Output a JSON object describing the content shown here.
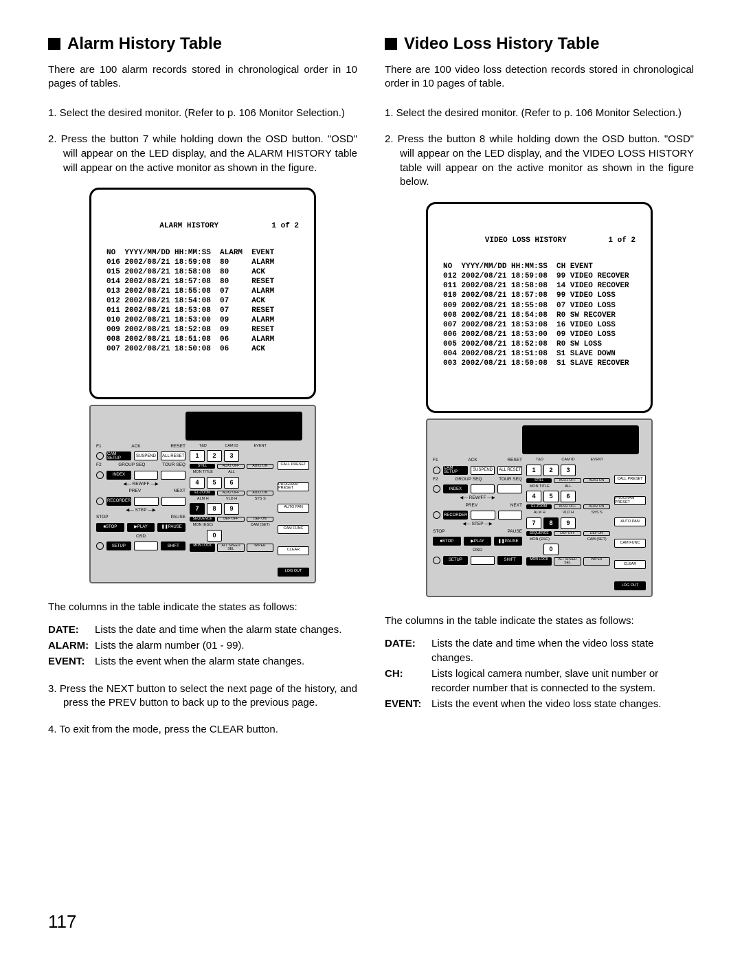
{
  "page_number": "117",
  "left": {
    "title": "Alarm History Table",
    "intro": "There are 100 alarm records stored in chronological order in 10 pages of tables.",
    "steps": [
      "1. Select the desired monitor. (Refer to p. 106 Monitor Selection.)",
      "2. Press the button 7 while holding down the OSD button. \"OSD\" will appear on the LED display, and the ALARM HISTORY table will appear on the active monitor as shown in the figure."
    ],
    "table": {
      "title": "ALARM HISTORY",
      "page": "1 of 2",
      "header": "NO  YYYY/MM/DD HH:MM:SS  ALARM  EVENT",
      "rows": [
        "016 2002/08/21 18:59:08  80     ALARM",
        "015 2002/08/21 18:58:08  80     ACK",
        "014 2002/08/21 18:57:08  80     RESET",
        "013 2002/08/21 18:55:08  07     ALARM",
        "012 2002/08/21 18:54:08  07     ACK",
        "011 2002/08/21 18:53:08  07     RESET",
        "010 2002/08/21 18:53:00  09     ALARM",
        "009 2002/08/21 18:52:08  09     RESET",
        "008 2002/08/21 18:51:08  06     ALARM",
        "007 2002/08/21 18:50:08  06     ACK"
      ]
    },
    "highlight_key": "7",
    "cols_text": "The columns in the table indicate the states as follows:",
    "defs": [
      {
        "term": "DATE:",
        "desc": "Lists the date and time when the alarm state changes."
      },
      {
        "term": "ALARM:",
        "desc": "Lists the alarm number (01 - 99)."
      },
      {
        "term": "EVENT:",
        "desc": "Lists the event when the alarm state changes."
      }
    ],
    "after_steps": [
      "3. Press the NEXT button to select the next page of the history, and press the PREV button to back up to the previous page.",
      "4. To exit from the mode, press the CLEAR button."
    ]
  },
  "right": {
    "title": "Video Loss History Table",
    "intro": "There are 100 video loss detection records stored in chronological order in 10 pages of table.",
    "steps": [
      "1. Select the desired monitor. (Refer to p. 106 Monitor Selection.)",
      "2. Press the button 8 while holding down the OSD button. \"OSD\" will appear on the LED display, and the VIDEO LOSS HISTORY table will appear on the active monitor as shown in the figure  below."
    ],
    "table": {
      "title": "VIDEO LOSS HISTORY",
      "page": "1 of 2",
      "header": "NO  YYYY/MM/DD HH:MM:SS  CH EVENT",
      "rows": [
        "012 2002/08/21 18:59:08  99 VIDEO RECOVER",
        "011 2002/08/21 18:58:08  14 VIDEO RECOVER",
        "010 2002/08/21 18:57:08  99 VIDEO LOSS",
        "009 2002/08/21 18:55:08  07 VIDEO LOSS",
        "008 2002/08/21 18:54:08  R0 SW RECOVER",
        "007 2002/08/21 18:53:08  16 VIDEO LOSS",
        "006 2002/08/21 18:53:00  09 VIDEO LOSS",
        "005 2002/08/21 18:52:08  R0 SW LOSS",
        "004 2002/08/21 18:51:08  S1 SLAVE DOWN",
        "003 2002/08/21 18:50:08  S1 SLAVE RECOVER"
      ]
    },
    "highlight_key": "8",
    "cols_text": "The columns in the table indicate the states as follows:",
    "defs": [
      {
        "term": "DATE:",
        "desc": "Lists the date and time when the video loss state changes."
      },
      {
        "term": "CH:",
        "desc": "Lists logical camera number, slave unit number or recorder number that is connected to the system."
      },
      {
        "term": "EVENT:",
        "desc": "Lists the event when the video loss state changes."
      }
    ]
  },
  "controller": {
    "top_labels": [
      "F1",
      "ACK",
      "RESET"
    ],
    "r1_btns": [
      "CAM SETUP",
      "SUSPEND",
      "ALL RESET"
    ],
    "r2_labels": [
      "F2",
      "GROUP SEQ",
      "TOUR SEQ"
    ],
    "r2_btns": [
      "INDEX",
      "",
      ""
    ],
    "r2_sub": "REW/FF",
    "r3_labels": [
      "",
      "PREV",
      "NEXT"
    ],
    "r3_btns": [
      "RECORDER",
      "",
      ""
    ],
    "r3_sub": "STEP",
    "r4_labels": [
      "STOP",
      "",
      "PAUSE"
    ],
    "r4_btns": [
      "■STOP",
      "▶PLAY",
      "❚❚PAUSE"
    ],
    "r5_labels": [
      "",
      "OSD",
      ""
    ],
    "r5_btns": [
      "SETUP",
      "",
      "SHIFT"
    ],
    "kp_top": [
      [
        "T&D",
        "CAM ID",
        "EVENT"
      ],
      [
        "MON TITLE",
        "ALL",
        ""
      ],
      [
        "ALM H",
        "VLD H",
        "SYS S"
      ],
      [
        "MON (ESC)",
        "",
        "CAM (SET)"
      ]
    ],
    "kp_nums": [
      [
        "1",
        "2",
        "3"
      ],
      [
        "4",
        "5",
        "6"
      ],
      [
        "7",
        "8",
        "9"
      ],
      [
        "",
        "0",
        ""
      ]
    ],
    "kp_btm": [
      [
        "STILL",
        "AUX1 OFF",
        "AUX1 ON"
      ],
      [
        "EL-ZOOM",
        "AUX2 OFF",
        "AUX2 ON"
      ],
      [
        "SEQUENCE",
        "DEF OFF",
        "DEF ON"
      ],
      [
        "MON LOCK",
        "ALT SPEED SEL",
        "WIPER"
      ]
    ],
    "side": [
      "CALL PRESET",
      "PROGRAM PRESET",
      "AUTO PAN",
      "CAM FUNC",
      "CLEAR",
      "LOG OUT"
    ]
  }
}
